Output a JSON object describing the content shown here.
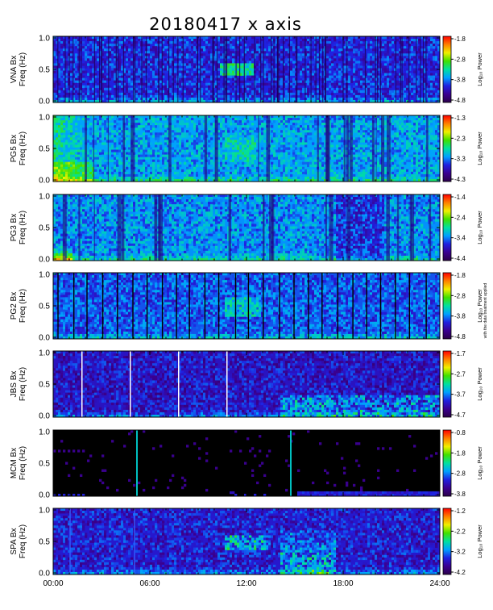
{
  "title": "20180417 x axis",
  "side_note": "with the data treatment applied",
  "chart_data": [
    {
      "type": "heatmap",
      "station": "VNA",
      "ylabel": [
        "VNA Bx",
        "Freq (Hz)"
      ],
      "yticks": [
        "1.0",
        "0.5",
        "0.0"
      ],
      "ylim": [
        0,
        1.0
      ],
      "colorbar": {
        "label": "Log₁₀ Power",
        "ticks": [
          "-1.8",
          "-2.8",
          "-3.8",
          "-4.8"
        ],
        "range": [
          -4.8,
          -1.8
        ]
      },
      "features": "dense periodic vertical stripes throughout day; emission patch ~0.5-0.6 Hz near 11:00-12:00",
      "seed": 11,
      "bg": 0.25,
      "gaps": [],
      "stripes": "many-dark"
    },
    {
      "type": "heatmap",
      "station": "PG5",
      "ylabel": [
        "PG5 Bx",
        "Freq (Hz)"
      ],
      "yticks": [
        "1.0",
        "0.5",
        "0.0"
      ],
      "ylim": [
        0,
        1.0
      ],
      "colorbar": {
        "label": "Log₁₀ Power",
        "ticks": [
          "-1.3",
          "-2.3",
          "-3.3",
          "-4.3"
        ],
        "range": [
          -4.3,
          -1.3
        ]
      },
      "features": "elevated power before 03:00; faint emission ~11:00-13:00",
      "seed": 23,
      "bg": 0.38,
      "gaps": [],
      "stripes": "some-dark"
    },
    {
      "type": "heatmap",
      "station": "PG3",
      "ylabel": [
        "PG3 Bx",
        "Freq (Hz)"
      ],
      "yticks": [
        "1.0",
        "0.5",
        "0.0"
      ],
      "ylim": [
        0,
        1.0
      ],
      "colorbar": {
        "label": "Log₁₀ Power",
        "ticks": [
          "-1.4",
          "-2.4",
          "-3.4",
          "-4.4"
        ],
        "range": [
          -4.4,
          -1.4
        ]
      },
      "features": "strong low-frequency power near 00:00-01:00; darker band 17:00-20:00",
      "seed": 37,
      "bg": 0.36,
      "gaps": [],
      "stripes": "some-dark"
    },
    {
      "type": "heatmap",
      "station": "PG2",
      "ylabel": [
        "PG2 Bx",
        "Freq (Hz)"
      ],
      "yticks": [
        "1.0",
        "0.5",
        "0.0"
      ],
      "ylim": [
        0,
        1.0
      ],
      "colorbar": {
        "label": "Log₁₀ Power",
        "ticks": [
          "-1.8",
          "-2.8",
          "-3.8",
          "-4.8"
        ],
        "range": [
          -4.8,
          -1.8
        ]
      },
      "features": "regularly spaced black vertical gaps; emission ~0.5 Hz near 11:00-12:30",
      "seed": 41,
      "bg": 0.3,
      "gaps": [],
      "stripes": "black-lines"
    },
    {
      "type": "heatmap",
      "station": "JBS",
      "ylabel": [
        "JBS Bx",
        "Freq (Hz)"
      ],
      "yticks": [
        "1.0",
        "0.5",
        "0.0"
      ],
      "ylim": [
        0,
        1.0
      ],
      "colorbar": {
        "label": "Log₁₀ Power",
        "ticks": [
          "-1.7",
          "-2.7",
          "-3.7",
          "-4.7"
        ],
        "range": [
          -4.7,
          -1.7
        ]
      },
      "features": "white data gaps near 01:45, 04:45, 07:45, 10:45; bursts after 14:00",
      "seed": 53,
      "bg": 0.2,
      "gaps": [
        1.75,
        4.75,
        7.75,
        10.75
      ],
      "stripes": "none"
    },
    {
      "type": "heatmap",
      "station": "MCM",
      "ylabel": [
        "MCM Bx",
        "Freq (Hz)"
      ],
      "yticks": [
        "1.0",
        "0.5",
        "0.0"
      ],
      "ylim": [
        0,
        1.0
      ],
      "colorbar": {
        "label": "Log₁₀ Power",
        "ticks": [
          "-0.8",
          "-1.8",
          "-2.8",
          "-3.8"
        ],
        "range": [
          -3.8,
          -0.8
        ]
      },
      "features": "mostly black background; broadband spikes near 05:10 and 14:40; weak low-frequency power after 15:00",
      "seed": 67,
      "bg": 0.0,
      "gaps": [],
      "stripes": "spikes"
    },
    {
      "type": "heatmap",
      "station": "SPA",
      "ylabel": [
        "SPA Bx",
        "Freq (Hz)"
      ],
      "yticks": [
        "1.0",
        "0.5",
        "0.0"
      ],
      "ylim": [
        0,
        1.0
      ],
      "colorbar": {
        "label": "Log₁₀ Power",
        "ticks": [
          "-1.2",
          "-2.2",
          "-3.2",
          "-4.2"
        ],
        "range": [
          -4.2,
          -1.2
        ]
      },
      "features": "emission loop ~0.4-0.6 Hz from 10:30 to 13:30; strong bursts 14:00-17:30",
      "seed": 79,
      "bg": 0.22,
      "gaps": [],
      "stripes": "few"
    }
  ],
  "x_axis": {
    "ticks": [
      "00:00",
      "06:00",
      "12:00",
      "18:00",
      "24:00"
    ],
    "range_hours": [
      0,
      24
    ]
  },
  "colors": {
    "cmap": [
      "#2a0048",
      "#3a0090",
      "#2020e0",
      "#00a0ff",
      "#00e0a0",
      "#40e000",
      "#f0f000",
      "#ff8000",
      "#ff0000"
    ]
  }
}
